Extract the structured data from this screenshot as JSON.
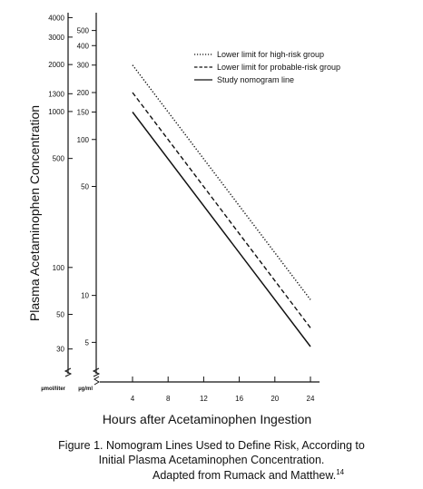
{
  "chart_data": {
    "type": "line",
    "xlabel": "Hours after Acetaminophen Ingestion",
    "ylabel": "Plasma Acetaminophen Concentration",
    "x_ticks": [
      4,
      8,
      12,
      16,
      20,
      24
    ],
    "xlim": [
      0,
      24
    ],
    "y_scale": "log",
    "left_axis_unit": "µmol/liter",
    "left_axis_ticks": [
      4000,
      3000,
      2000,
      1300,
      1000,
      500,
      100,
      50,
      30
    ],
    "right_axis_unit": "µg/ml",
    "right_axis_ticks": [
      500,
      400,
      300,
      200,
      150,
      100,
      50,
      10,
      5
    ],
    "ylim_ug_ml": [
      3.5,
      600
    ],
    "series": [
      {
        "name": "Lower limit for high-risk group",
        "style": "dotted",
        "x": [
          4,
          24
        ],
        "y": [
          300,
          9.4
        ]
      },
      {
        "name": "Lower limit for probable-risk group",
        "style": "dashed",
        "x": [
          4,
          24
        ],
        "y": [
          200,
          6.2
        ]
      },
      {
        "name": "Study nomogram line",
        "style": "solid",
        "x": [
          4,
          24
        ],
        "y": [
          150,
          4.7
        ]
      }
    ],
    "legend_position": "top-right",
    "grid": false
  },
  "caption": {
    "line1": "Figure 1. Nomogram Lines Used to Define Risk, According to",
    "line2": "Initial Plasma Acetaminophen Concentration.",
    "line3_text": "Adapted from Rumack and Matthew.",
    "line3_ref": "14"
  }
}
